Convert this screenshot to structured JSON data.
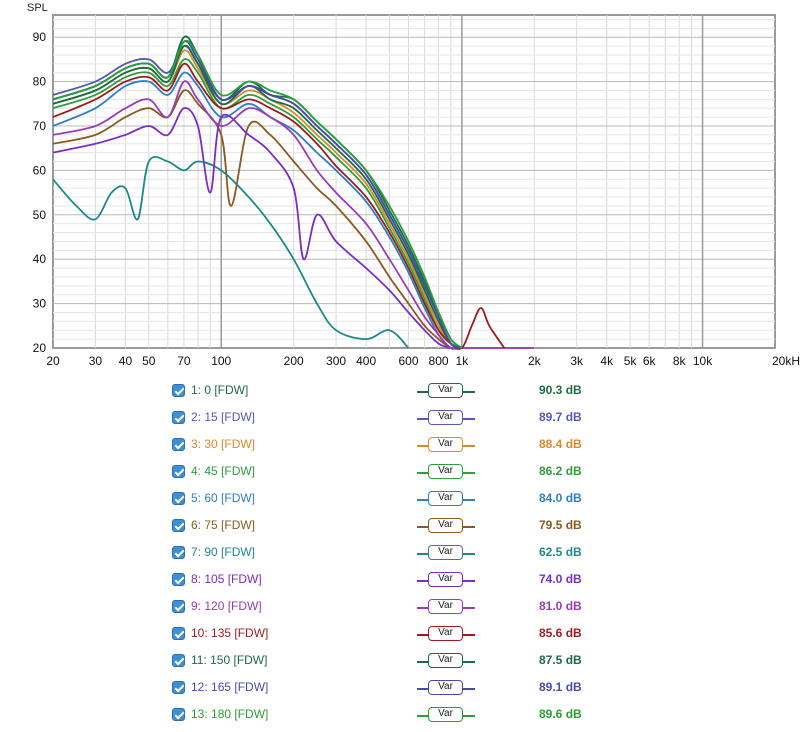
{
  "chart_data": {
    "type": "line",
    "ylabel": "SPL",
    "x_scale": "log",
    "xlim": [
      20,
      20000
    ],
    "ylim": [
      20,
      95
    ],
    "y_ticks": [
      20,
      30,
      40,
      50,
      60,
      70,
      80,
      90
    ],
    "y_tick_labels": [
      "20",
      "30",
      "40",
      "50",
      "60",
      "70",
      "80",
      "90"
    ],
    "x_ticks": [
      20,
      30,
      40,
      50,
      70,
      100,
      200,
      300,
      400,
      600,
      800,
      1000,
      2000,
      3000,
      4000,
      5000,
      6000,
      8000,
      10000,
      20000
    ],
    "x_tick_labels": [
      "20",
      "30",
      "40",
      "50",
      "70",
      "100",
      "200",
      "300",
      "400",
      "600",
      "800",
      "1k",
      "2k",
      "3k",
      "4k",
      "5k",
      "6k",
      "8k",
      "10k",
      "20kHz"
    ],
    "grid": true,
    "series": [
      {
        "name": "1: 0 [FDW]",
        "color": "#1e6b45",
        "x": [
          20,
          30,
          40,
          50,
          60,
          70,
          80,
          100,
          130,
          160,
          200,
          250,
          300,
          400,
          500,
          600,
          700,
          800,
          900,
          1000
        ],
        "y": [
          76,
          79,
          83,
          84,
          81,
          90,
          86,
          76,
          80,
          77,
          76,
          71,
          67,
          60,
          51,
          43,
          35,
          28,
          22,
          20
        ]
      },
      {
        "name": "2: 15 [FDW]",
        "color": "#5757b8",
        "x": [
          20,
          30,
          40,
          50,
          60,
          70,
          80,
          100,
          130,
          160,
          200,
          250,
          300,
          400,
          500,
          600,
          700,
          800,
          900,
          1000
        ],
        "y": [
          77,
          80,
          84,
          85,
          82,
          88,
          84,
          76,
          79,
          77,
          75,
          70,
          66,
          59,
          50,
          42,
          34,
          27,
          21,
          20
        ]
      },
      {
        "name": "3: 30 [FDW]",
        "color": "#d98a2b",
        "x": [
          20,
          30,
          40,
          50,
          60,
          70,
          80,
          100,
          130,
          160,
          200,
          250,
          300,
          400,
          500,
          600,
          700,
          800,
          900,
          1000
        ],
        "y": [
          75,
          78,
          82,
          83,
          80,
          87,
          83,
          75,
          78,
          76,
          73,
          68,
          64,
          57,
          48,
          40,
          32,
          25,
          21,
          20
        ]
      },
      {
        "name": "4: 45 [FDW]",
        "color": "#2e9e3c",
        "x": [
          20,
          30,
          40,
          50,
          60,
          70,
          80,
          100,
          130,
          160,
          200,
          250,
          300,
          400,
          500,
          600,
          700,
          800,
          900,
          1000
        ],
        "y": [
          74,
          77,
          81,
          82,
          79,
          85,
          82,
          74,
          77,
          75,
          72,
          67,
          63,
          56,
          47,
          39,
          31,
          24,
          21,
          20
        ]
      },
      {
        "name": "5: 60 [FDW]",
        "color": "#2f7fc4",
        "x": [
          20,
          30,
          40,
          50,
          60,
          70,
          80,
          100,
          130,
          160,
          200,
          250,
          300,
          400,
          500,
          600,
          700,
          800,
          900,
          1000
        ],
        "y": [
          70,
          74,
          79,
          80,
          77,
          82,
          79,
          72,
          75,
          72,
          69,
          64,
          60,
          53,
          45,
          37,
          29,
          23,
          20,
          20
        ]
      },
      {
        "name": "6: 75 [FDW]",
        "color": "#8b5a1e",
        "x": [
          20,
          30,
          40,
          50,
          60,
          70,
          80,
          100,
          110,
          130,
          160,
          200,
          250,
          300,
          400,
          500,
          600,
          700,
          800,
          900,
          1000
        ],
        "y": [
          66,
          68,
          72,
          74,
          72,
          78,
          75,
          68,
          52,
          70,
          68,
          62,
          56,
          52,
          44,
          36,
          30,
          25,
          22,
          20,
          20
        ]
      },
      {
        "name": "7: 90 [FDW]",
        "color": "#1e8a8a",
        "x": [
          20,
          25,
          30,
          35,
          40,
          45,
          50,
          60,
          70,
          80,
          100,
          130,
          160,
          200,
          250,
          300,
          400,
          500,
          600
        ],
        "y": [
          58,
          52,
          49,
          55,
          56,
          49,
          62,
          62,
          60,
          62,
          60,
          54,
          48,
          40,
          30,
          24,
          22,
          24,
          20
        ]
      },
      {
        "name": "8: 105 [FDW]",
        "color": "#7a2ec4",
        "x": [
          20,
          30,
          40,
          50,
          60,
          70,
          80,
          90,
          100,
          130,
          160,
          200,
          220,
          250,
          300,
          400,
          500,
          600,
          700,
          800,
          900,
          1000
        ],
        "y": [
          64,
          66,
          68,
          70,
          68,
          74,
          70,
          55,
          72,
          68,
          64,
          56,
          40,
          50,
          44,
          38,
          33,
          28,
          24,
          21,
          20,
          20
        ]
      },
      {
        "name": "9: 120 [FDW]",
        "color": "#9a3bb8",
        "x": [
          20,
          30,
          40,
          50,
          60,
          70,
          80,
          100,
          130,
          160,
          200,
          250,
          300,
          400,
          500,
          600,
          700,
          800,
          900,
          1000,
          2000
        ],
        "y": [
          68,
          70,
          74,
          76,
          72,
          80,
          76,
          70,
          74,
          72,
          68,
          60,
          55,
          48,
          40,
          33,
          27,
          23,
          20,
          20,
          20
        ]
      },
      {
        "name": "10: 135 [FDW]",
        "color": "#9c1c1c",
        "x": [
          20,
          30,
          40,
          50,
          60,
          70,
          80,
          100,
          130,
          160,
          200,
          250,
          300,
          400,
          500,
          600,
          700,
          800,
          900,
          1000,
          1100,
          1200,
          1300,
          1500
        ],
        "y": [
          72,
          76,
          80,
          81,
          78,
          84,
          80,
          74,
          76,
          74,
          71,
          66,
          61,
          54,
          46,
          38,
          30,
          24,
          21,
          20,
          25,
          29,
          25,
          20
        ]
      },
      {
        "name": "11: 150 [FDW]",
        "color": "#1a6b4a",
        "x": [
          20,
          30,
          40,
          50,
          60,
          70,
          80,
          100,
          130,
          160,
          200,
          250,
          300,
          400,
          500,
          600,
          700,
          800,
          900,
          1000
        ],
        "y": [
          75,
          78,
          82,
          83,
          80,
          88,
          84,
          75,
          79,
          76,
          74,
          69,
          65,
          58,
          49,
          41,
          33,
          26,
          21,
          20
        ]
      },
      {
        "name": "12: 165 [FDW]",
        "color": "#4a4aaa",
        "x": [
          20,
          30,
          40,
          50,
          60,
          70,
          80,
          100,
          130,
          160,
          200,
          250,
          300,
          400,
          500,
          600,
          700,
          800,
          900,
          1000
        ],
        "y": [
          76,
          79,
          83,
          84,
          81,
          89,
          85,
          76,
          79,
          77,
          75,
          70,
          66,
          59,
          50,
          42,
          34,
          27,
          21,
          20
        ]
      },
      {
        "name": "13: 180 [FDW]",
        "color": "#27a035",
        "x": [
          20,
          30,
          40,
          50,
          60,
          70,
          80,
          100,
          130,
          160,
          200,
          250,
          300,
          400,
          500,
          600,
          700,
          800,
          900,
          1000
        ],
        "y": [
          76,
          79,
          83,
          84,
          81,
          89,
          86,
          77,
          80,
          78,
          76,
          71,
          67,
          60,
          52,
          44,
          36,
          28,
          22,
          20
        ]
      }
    ]
  },
  "legend": {
    "button_label": "Var",
    "items": [
      {
        "label": "1: 0 [FDW]",
        "value": "90.3 dB",
        "color": "#1e6b45"
      },
      {
        "label": "2: 15 [FDW]",
        "value": "89.7 dB",
        "color": "#5757b8"
      },
      {
        "label": "3: 30 [FDW]",
        "value": "88.4 dB",
        "color": "#d98a2b"
      },
      {
        "label": "4: 45 [FDW]",
        "value": "86.2 dB",
        "color": "#2e9e3c"
      },
      {
        "label": "5: 60 [FDW]",
        "value": "84.0 dB",
        "color": "#2f7fc4"
      },
      {
        "label": "6: 75 [FDW]",
        "value": "79.5 dB",
        "color": "#8b5a1e"
      },
      {
        "label": "7: 90 [FDW]",
        "value": "62.5 dB",
        "color": "#1e8a8a"
      },
      {
        "label": "8: 105 [FDW]",
        "value": "74.0 dB",
        "color": "#7a2ec4"
      },
      {
        "label": "9: 120 [FDW]",
        "value": "81.0 dB",
        "color": "#9a3bb8"
      },
      {
        "label": "10: 135 [FDW]",
        "value": "85.6 dB",
        "color": "#9c1c1c"
      },
      {
        "label": "11: 150 [FDW]",
        "value": "87.5 dB",
        "color": "#1a6b4a"
      },
      {
        "label": "12: 165 [FDW]",
        "value": "89.1 dB",
        "color": "#4a4aaa"
      },
      {
        "label": "13: 180 [FDW]",
        "value": "89.6 dB",
        "color": "#27a035"
      }
    ]
  }
}
